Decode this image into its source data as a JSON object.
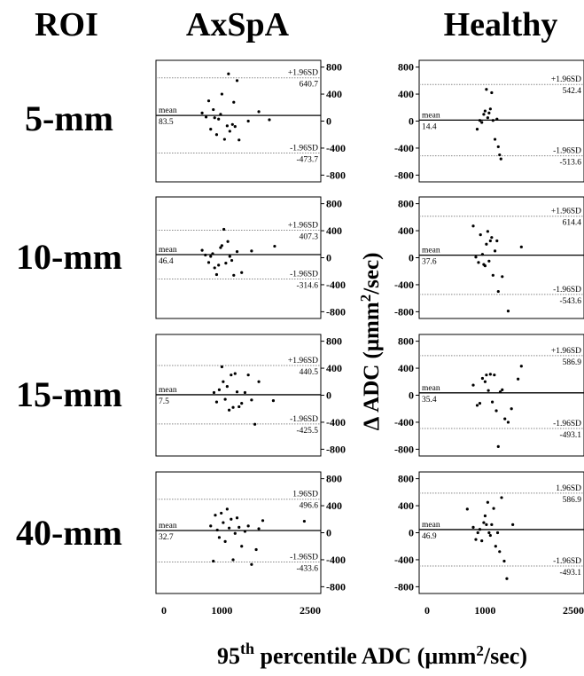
{
  "headers": {
    "roi": "ROI",
    "group_axspa": "AxSpA",
    "group_healthy": "Healthy"
  },
  "rows": [
    "5-mm",
    "10-mm",
    "15-mm",
    "40-mm"
  ],
  "ylabel_main": "Δ ADC (μmm",
  "ylabel_sup": "2",
  "ylabel_tail": "/sec)",
  "xlabel_prefix": "95",
  "xlabel_sup": "th",
  "xlabel_suffix": " percentile ADC (μmm",
  "xlabel_sup2": "2",
  "xlabel_end": "/sec)",
  "x_ticks": [
    "0",
    "1000",
    "2500"
  ],
  "chart_data": [
    {
      "type": "scatter",
      "roi": "5-mm",
      "group": "AxSpA",
      "xlim": [
        0,
        2500
      ],
      "ylim": [
        -900,
        900
      ],
      "y_ticks": [
        800,
        400,
        0,
        -400,
        -800
      ],
      "ytick_side": "right",
      "mean": 83.5,
      "upper": 640.7,
      "lower": -473.7,
      "mean_label": "mean",
      "upper_label": "+1.96SD",
      "lower_label": "-1.96SD",
      "mean_text": "83.5",
      "upper_text": "640.7",
      "lower_text": "-473.7",
      "x": [
        700,
        760,
        800,
        830,
        870,
        890,
        920,
        950,
        980,
        1000,
        1040,
        1080,
        1100,
        1120,
        1160,
        1180,
        1200,
        1230,
        1260,
        1400,
        1560,
        1720
      ],
      "y": [
        120,
        60,
        300,
        -120,
        170,
        50,
        -200,
        30,
        100,
        400,
        -270,
        -70,
        700,
        -150,
        -50,
        280,
        -80,
        600,
        -280,
        0,
        140,
        20
      ]
    },
    {
      "type": "scatter",
      "roi": "5-mm",
      "group": "Healthy",
      "xlim": [
        0,
        2500
      ],
      "ylim": [
        -900,
        900
      ],
      "y_ticks": [
        800,
        400,
        0,
        -400,
        -800
      ],
      "ytick_side": "left",
      "mean": 14.4,
      "upper": 542.4,
      "lower": -513.6,
      "mean_label": "mean",
      "upper_label": "+1.96SD",
      "lower_label": "-1.96SD",
      "mean_text": "14.4",
      "upper_text": "542.4",
      "lower_text": "-513.6",
      "x": [
        880,
        920,
        950,
        980,
        1000,
        1020,
        1040,
        1060,
        1080,
        1100,
        1120,
        1150,
        1180,
        1200,
        1220,
        1240
      ],
      "y": [
        -120,
        10,
        -20,
        100,
        150,
        470,
        50,
        120,
        180,
        420,
        10,
        -270,
        30,
        -380,
        -500,
        -560
      ]
    },
    {
      "type": "scatter",
      "roi": "10-mm",
      "group": "AxSpA",
      "xlim": [
        0,
        2500
      ],
      "ylim": [
        -900,
        900
      ],
      "y_ticks": [
        800,
        400,
        0,
        -400,
        -800
      ],
      "ytick_side": "right",
      "mean": 46.4,
      "upper": 407.3,
      "lower": -314.6,
      "mean_label": "mean",
      "upper_label": "+1.96SD",
      "lower_label": "-1.96SD",
      "mean_text": "46.4",
      "upper_text": "407.3",
      "lower_text": "-314.6",
      "x": [
        700,
        750,
        800,
        830,
        860,
        890,
        920,
        950,
        980,
        1000,
        1030,
        1060,
        1090,
        1120,
        1150,
        1180,
        1230,
        1300,
        1450,
        1800
      ],
      "y": [
        110,
        40,
        -70,
        20,
        60,
        -150,
        -250,
        -110,
        150,
        180,
        420,
        -80,
        240,
        20,
        -40,
        -260,
        90,
        -220,
        100,
        170
      ]
    },
    {
      "type": "scatter",
      "roi": "10-mm",
      "group": "Healthy",
      "xlim": [
        0,
        2500
      ],
      "ylim": [
        -900,
        900
      ],
      "y_ticks": [
        800,
        400,
        0,
        -400,
        -800
      ],
      "ytick_side": "left",
      "mean": 37.6,
      "upper": 614.4,
      "lower": -543.6,
      "mean_label": "mean",
      "upper_label": "+1.96SD",
      "lower_label": "-1.96SD",
      "mean_text": "37.6",
      "upper_text": "614.4",
      "lower_text": "-543.6",
      "x": [
        820,
        860,
        900,
        930,
        960,
        980,
        1000,
        1020,
        1040,
        1060,
        1080,
        1100,
        1120,
        1150,
        1180,
        1200,
        1260,
        1350,
        1550
      ],
      "y": [
        470,
        10,
        -70,
        340,
        50,
        -100,
        -120,
        200,
        390,
        -50,
        250,
        300,
        -260,
        100,
        250,
        -500,
        -280,
        -790,
        160
      ]
    },
    {
      "type": "scatter",
      "roi": "15-mm",
      "group": "AxSpA",
      "xlim": [
        0,
        2500
      ],
      "ylim": [
        -900,
        900
      ],
      "y_ticks": [
        800,
        400,
        0,
        -400,
        -800
      ],
      "ytick_side": "right",
      "mean": 7.5,
      "upper": 440.5,
      "lower": -425.5,
      "mean_label": "mean",
      "upper_label": "+1.96SD",
      "lower_label": "-1.96SD",
      "mean_text": "7.5",
      "upper_text": "440.5",
      "lower_text": "-425.5",
      "x": [
        880,
        920,
        960,
        1000,
        1020,
        1050,
        1080,
        1110,
        1140,
        1170,
        1200,
        1230,
        1260,
        1300,
        1350,
        1400,
        1450,
        1500,
        1560,
        1780
      ],
      "y": [
        40,
        -100,
        80,
        420,
        200,
        -60,
        130,
        -220,
        300,
        -180,
        320,
        50,
        -170,
        -120,
        40,
        300,
        -70,
        -430,
        200,
        -80
      ]
    },
    {
      "type": "scatter",
      "roi": "15-mm",
      "group": "Healthy",
      "xlim": [
        0,
        2500
      ],
      "ylim": [
        -900,
        900
      ],
      "y_ticks": [
        800,
        400,
        0,
        -400,
        -800
      ],
      "ytick_side": "left",
      "mean": 35.4,
      "upper": 586.9,
      "lower": -493.1,
      "mean_label": "mean",
      "upper_label": "+1.96SD",
      "lower_label": "-1.96SD",
      "mean_text": "35.4",
      "upper_text": "586.9",
      "lower_text": "-493.1",
      "x": [
        820,
        880,
        920,
        960,
        1000,
        1020,
        1050,
        1080,
        1110,
        1140,
        1170,
        1200,
        1230,
        1260,
        1300,
        1350,
        1400,
        1500,
        1550
      ],
      "y": [
        150,
        -150,
        -120,
        250,
        200,
        300,
        70,
        310,
        -100,
        300,
        -230,
        -760,
        50,
        80,
        -350,
        -400,
        -200,
        240,
        430
      ]
    },
    {
      "type": "scatter",
      "roi": "40-mm",
      "group": "AxSpA",
      "xlim": [
        0,
        2500
      ],
      "ylim": [
        -900,
        900
      ],
      "y_ticks": [
        800,
        400,
        0,
        -400,
        -800
      ],
      "ytick_side": "right",
      "mean": 32.7,
      "upper": 496.6,
      "lower": -433.6,
      "mean_label": "mean",
      "upper_label": "1.96SD",
      "lower_label": "-1.96SD",
      "mean_text": "32.7",
      "upper_text": "496.6",
      "lower_text": "-433.6",
      "x": [
        830,
        870,
        900,
        930,
        960,
        990,
        1020,
        1050,
        1080,
        1110,
        1140,
        1170,
        1200,
        1230,
        1260,
        1300,
        1350,
        1400,
        1450,
        1520,
        1560,
        1620,
        2250
      ],
      "y": [
        100,
        -420,
        260,
        40,
        -70,
        290,
        150,
        -130,
        350,
        70,
        200,
        -400,
        -10,
        220,
        80,
        -200,
        20,
        100,
        -470,
        -250,
        60,
        180,
        170
      ]
    },
    {
      "type": "scatter",
      "roi": "40-mm",
      "group": "Healthy",
      "xlim": [
        0,
        2500
      ],
      "ylim": [
        -900,
        900
      ],
      "y_ticks": [
        800,
        400,
        0,
        -400,
        -800
      ],
      "ytick_side": "left",
      "mean": 46.9,
      "upper": 586.9,
      "lower": -493.1,
      "mean_label": "mean",
      "upper_label": "1.96SD",
      "lower_label": "-1.96SD",
      "mean_text": "46.9",
      "upper_text": "586.9",
      "lower_text": "-493.1",
      "x": [
        730,
        820,
        860,
        890,
        920,
        950,
        980,
        1000,
        1020,
        1040,
        1060,
        1080,
        1100,
        1130,
        1160,
        1190,
        1220,
        1250,
        1290,
        1330,
        1420
      ],
      "y": [
        350,
        80,
        -100,
        0,
        50,
        -120,
        150,
        250,
        120,
        450,
        0,
        -40,
        120,
        360,
        -200,
        0,
        -280,
        520,
        -420,
        -680,
        120
      ]
    }
  ]
}
